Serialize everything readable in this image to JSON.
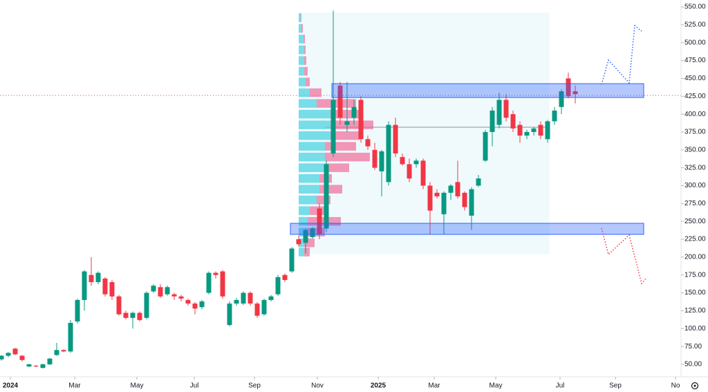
{
  "chart_data": {
    "type": "candlestick",
    "open": [
      57,
      62,
      72,
      62,
      47,
      48,
      45,
      50,
      63,
      70,
      68,
      110,
      140,
      175,
      165,
      170,
      165,
      145,
      122,
      115,
      122,
      115,
      152,
      158,
      148,
      148,
      145,
      140,
      135,
      130,
      150,
      178,
      180,
      105,
      135,
      135,
      150,
      135,
      120,
      140,
      148,
      175,
      180,
      225,
      220,
      228,
      268,
      240,
      345,
      440,
      385,
      395,
      420,
      365,
      350,
      320,
      305,
      385,
      340,
      330,
      330,
      335,
      300,
      290,
      260,
      290,
      305,
      290,
      258,
      300,
      335,
      375,
      385,
      420,
      400,
      385,
      370,
      375,
      385,
      365,
      390,
      410,
      450,
      432
    ],
    "high": [
      63,
      67,
      73,
      63,
      51,
      49,
      51,
      59,
      80,
      71,
      112,
      142,
      182,
      200,
      180,
      172,
      168,
      147,
      125,
      124,
      124,
      152,
      162,
      162,
      160,
      150,
      147,
      142,
      137,
      140,
      180,
      180,
      182,
      138,
      143,
      152,
      152,
      137,
      142,
      147,
      175,
      177,
      214,
      230,
      240,
      242,
      275,
      335,
      545,
      445,
      445,
      420,
      425,
      370,
      360,
      350,
      390,
      395,
      345,
      338,
      338,
      338,
      305,
      295,
      292,
      302,
      335,
      292,
      298,
      315,
      378,
      410,
      430,
      428,
      405,
      390,
      378,
      382,
      390,
      392,
      410,
      435,
      458,
      440
    ],
    "low": [
      55,
      60,
      63,
      54,
      46,
      46,
      44,
      49,
      62,
      67,
      66,
      107,
      125,
      160,
      162,
      145,
      140,
      118,
      113,
      100,
      110,
      113,
      150,
      143,
      146,
      140,
      138,
      132,
      120,
      127,
      148,
      170,
      142,
      103,
      132,
      133,
      132,
      115,
      118,
      138,
      146,
      165,
      178,
      215,
      205,
      226,
      225,
      235,
      340,
      385,
      375,
      385,
      360,
      350,
      322,
      285,
      300,
      340,
      328,
      305,
      325,
      295,
      232,
      282,
      232,
      280,
      282,
      265,
      238,
      298,
      333,
      355,
      380,
      390,
      375,
      360,
      365,
      370,
      365,
      360,
      385,
      400,
      422,
      415
    ],
    "close": [
      62,
      66,
      64,
      56,
      50,
      47,
      50,
      58,
      70,
      68,
      108,
      140,
      180,
      165,
      178,
      148,
      145,
      120,
      115,
      122,
      112,
      150,
      160,
      145,
      158,
      145,
      142,
      135,
      128,
      138,
      178,
      175,
      145,
      135,
      140,
      150,
      135,
      118,
      140,
      145,
      172,
      168,
      212,
      218,
      238,
      240,
      232,
      330,
      420,
      395,
      390,
      410,
      365,
      355,
      325,
      348,
      385,
      345,
      330,
      310,
      335,
      300,
      265,
      285,
      290,
      300,
      285,
      270,
      295,
      310,
      375,
      405,
      420,
      395,
      380,
      370,
      375,
      380,
      370,
      390,
      405,
      432,
      425,
      428
    ],
    "up_color": "#089981",
    "down_color": "#f23645",
    "xticks": [
      {
        "value": 1.3,
        "label": "2024"
      },
      {
        "value": 10.6,
        "label": "Mar"
      },
      {
        "value": 19.6,
        "label": "May"
      },
      {
        "value": 27.9,
        "label": "Jul"
      },
      {
        "value": 36.6,
        "label": "Sep"
      },
      {
        "value": 45.7,
        "label": "Nov"
      },
      {
        "value": 54.5,
        "label": "2025"
      },
      {
        "value": 62.6,
        "label": "Mar"
      },
      {
        "value": 71.5,
        "label": "May"
      },
      {
        "value": 80.8,
        "label": "Jul"
      },
      {
        "value": 88.8,
        "label": "Sep"
      },
      {
        "value": 97.5,
        "label": "No"
      }
    ],
    "ylim": [
      37.4,
      559.7
    ],
    "yticks": [
      {
        "value": 50,
        "label": "50.00"
      },
      {
        "value": 75,
        "label": "75.00"
      },
      {
        "value": 100,
        "label": "100.00"
      },
      {
        "value": 125,
        "label": "125.00"
      },
      {
        "value": 150,
        "label": "150.00"
      },
      {
        "value": 175,
        "label": "175.00"
      },
      {
        "value": 200,
        "label": "200.00"
      },
      {
        "value": 225,
        "label": "225.00"
      },
      {
        "value": 250,
        "label": "250.00"
      },
      {
        "value": 275,
        "label": "275.00"
      },
      {
        "value": 300,
        "label": "300.00"
      },
      {
        "value": 325,
        "label": "325.00"
      },
      {
        "value": 350,
        "label": "350.00"
      },
      {
        "value": 375,
        "label": "375.00"
      },
      {
        "value": 400,
        "label": "400.00"
      },
      {
        "value": 425,
        "label": "425.00"
      },
      {
        "value": 450,
        "label": "450.00"
      },
      {
        "value": 475,
        "label": "475.00"
      },
      {
        "value": 500,
        "label": "500.00"
      },
      {
        "value": 525,
        "label": "525.00"
      },
      {
        "value": 550,
        "label": "550.00"
      }
    ],
    "volume_profile": {
      "prices": [
        535,
        520,
        505,
        490,
        475,
        460,
        445,
        430,
        415,
        400,
        385,
        370,
        355,
        340,
        325,
        310,
        295,
        280,
        265,
        250,
        235,
        220,
        207
      ],
      "up": [
        3,
        4,
        7,
        8,
        8,
        8,
        10,
        16,
        26,
        46,
        46,
        46,
        38,
        38,
        38,
        30,
        30,
        26,
        16,
        13,
        13,
        8,
        8
      ],
      "down": [
        1,
        2,
        2,
        2,
        3,
        5,
        6,
        17,
        57,
        42,
        62,
        42,
        45,
        65,
        35,
        18,
        33,
        20,
        27,
        48,
        25,
        15,
        8
      ],
      "up_color": "#4fd3e0",
      "down_color": "#f06292"
    }
  }
}
